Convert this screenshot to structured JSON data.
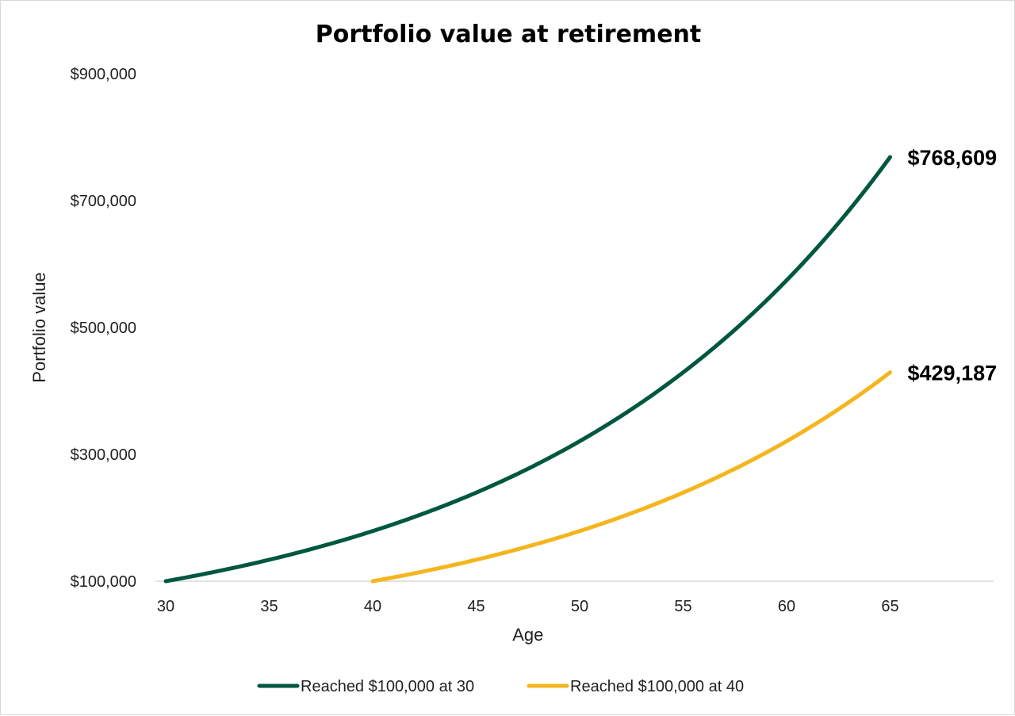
{
  "chart_data": {
    "type": "line",
    "title": "Portfolio value at retirement",
    "xlabel": "Age",
    "ylabel": "Portfolio value",
    "xlim": [
      29.5,
      70
    ],
    "ylim": [
      100000,
      900000
    ],
    "x_ticks": [
      30,
      35,
      40,
      45,
      50,
      55,
      60,
      65
    ],
    "x_tick_labels": [
      "30",
      "35",
      "40",
      "45",
      "50",
      "55",
      "60",
      "65"
    ],
    "y_ticks": [
      100000,
      300000,
      500000,
      700000,
      900000
    ],
    "y_tick_labels": [
      "$100,000",
      "$300,000",
      "$500,000",
      "$700,000",
      "$900,000"
    ],
    "grid": false,
    "legend_position": "bottom",
    "series": [
      {
        "name": "Reached $100,000 at 30",
        "color": "#00573f",
        "start_age": 30,
        "end_age": 65,
        "start_value": 100000,
        "end_value": 768609,
        "end_label": "$768,609",
        "x": [
          30,
          35,
          40,
          45,
          50,
          55,
          60,
          65
        ],
        "values": [
          100000,
          133800,
          179100,
          239700,
          320700,
          429200,
          574400,
          768609
        ]
      },
      {
        "name": "Reached $100,000 at 40",
        "color": "#f5b51e",
        "start_age": 40,
        "end_age": 65,
        "start_value": 100000,
        "end_value": 429187,
        "end_label": "$429,187",
        "x": [
          40,
          45,
          50,
          55,
          60,
          65
        ],
        "values": [
          100000,
          133800,
          179100,
          239700,
          320700,
          429187
        ]
      }
    ]
  }
}
